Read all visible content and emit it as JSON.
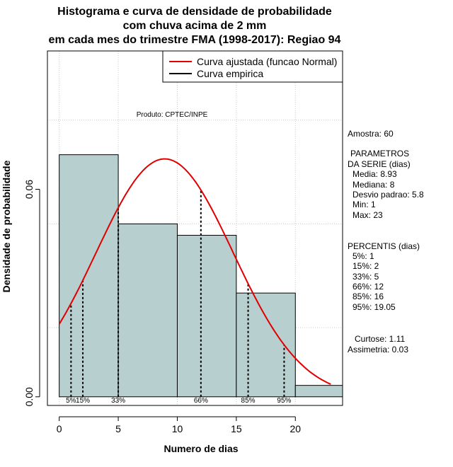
{
  "chart_data": {
    "type": "histogram",
    "title": [
      "Histograma e curva de densidade de probabilidade",
      "com chuva acima de 2 mm",
      "em cada mes do trimestre FMA (1998-2017): Regiao 94"
    ],
    "xlabel": "Numero de dias",
    "ylabel": "Densidade de probabilidade",
    "xlim": [
      -1,
      24
    ],
    "ylim": [
      -0.0025,
      0.1
    ],
    "x_ticks": [
      0,
      5,
      10,
      15,
      20
    ],
    "x_tick_labels": [
      "0",
      "5",
      "10",
      "15",
      "20"
    ],
    "y_ticks": [
      0.0,
      0.06
    ],
    "y_tick_labels": [
      "0.00",
      "0.06"
    ],
    "grid": true,
    "bins": [
      {
        "start": 0,
        "end": 5,
        "density": 0.07
      },
      {
        "start": 5,
        "end": 10,
        "density": 0.05
      },
      {
        "start": 10,
        "end": 15,
        "density": 0.0467
      },
      {
        "start": 15,
        "end": 20,
        "density": 0.03
      },
      {
        "start": 20,
        "end": 24,
        "density": 0.0033
      }
    ],
    "bar_color": "#b7cfcf",
    "normal_curve": {
      "name": "Curva ajustada (funcao Normal)",
      "mean": 8.93,
      "sd": 5.8,
      "x_range": [
        0,
        23
      ],
      "color": "#e00000"
    },
    "legend": [
      {
        "label": "Curva ajustada (funcao Normal)",
        "color": "#e00000"
      },
      {
        "label": "Curva empirica",
        "color": "#000000"
      }
    ],
    "legend_position": "top-right",
    "percentiles": [
      {
        "label": "5%",
        "x": 1
      },
      {
        "label": "15%",
        "x": 2
      },
      {
        "label": "33%",
        "x": 5
      },
      {
        "label": "66%",
        "x": 12
      },
      {
        "label": "85%",
        "x": 16
      },
      {
        "label": "95%",
        "x": 19.05
      }
    ],
    "annotation": "Produto: CPTEC/INPE"
  },
  "stats": {
    "amostra": "Amostra: 60",
    "param_title_1": "PARAMETROS",
    "param_title_2": "DA SERIE (dias)",
    "media": "Media: 8.93",
    "mediana": "Mediana: 8",
    "desvio": "Desvio padrao: 5.8",
    "min": "Min: 1",
    "max": "Max: 23",
    "percentis_title": "PERCENTIS (dias)",
    "p5": "5%: 1",
    "p15": "15%: 2",
    "p33": "33%: 5",
    "p66": "66%: 12",
    "p85": "85%: 16",
    "p95": "95%: 19.05",
    "curtose": "Curtose: 1.11",
    "assimetria": "Assimetria: 0.03"
  }
}
